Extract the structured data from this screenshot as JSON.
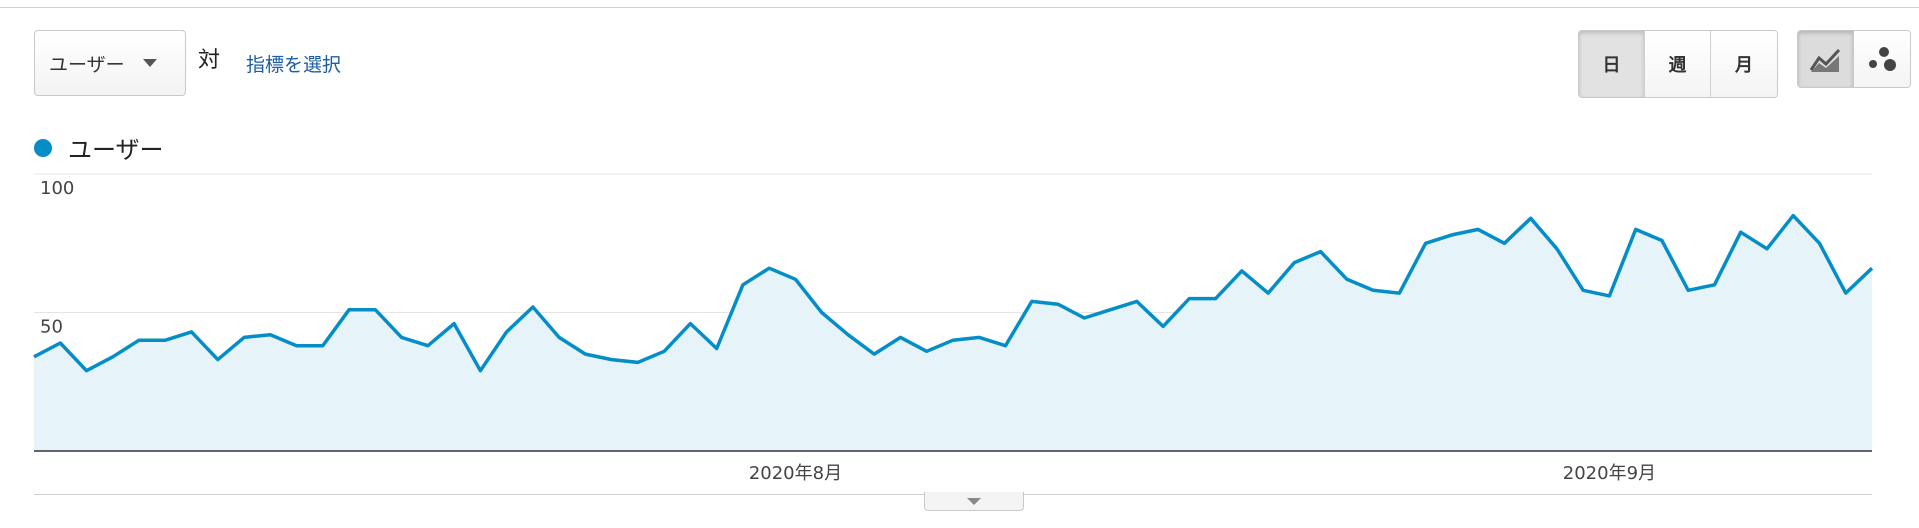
{
  "controls": {
    "metric_dropdown": "ユーザー",
    "vs_label": "対",
    "select_metric_link": "指標を選択",
    "period_buttons": [
      "日",
      "週",
      "月"
    ],
    "active_period": "日",
    "view_buttons": [
      "line-chart-icon",
      "motion-chart-icon"
    ],
    "active_view": "line-chart-icon"
  },
  "colors": {
    "series": "#058dc7",
    "area_fill": "#e6f4fa",
    "link": "#1a5fa3"
  },
  "chart_data": {
    "type": "area",
    "legend": "ユーザー",
    "legend_position": "top-left",
    "y_ticks": [
      "100",
      "50"
    ],
    "y_tick_values": [
      100,
      50
    ],
    "ylim": [
      0,
      100
    ],
    "grid": true,
    "x_tick_labels": [
      "2020年8月",
      "2020年9月"
    ],
    "x_tick_index": [
      29,
      60
    ],
    "series": [
      {
        "name": "ユーザー",
        "values": [
          34,
          39,
          29,
          34,
          40,
          40,
          43,
          33,
          41,
          42,
          38,
          38,
          51,
          51,
          41,
          38,
          46,
          29,
          43,
          52,
          41,
          35,
          33,
          32,
          36,
          46,
          37,
          60,
          66,
          62,
          50,
          42,
          35,
          41,
          36,
          40,
          41,
          38,
          54,
          53,
          48,
          51,
          54,
          45,
          55,
          55,
          65,
          57,
          68,
          72,
          62,
          58,
          57,
          75,
          78,
          80,
          75,
          84,
          73,
          58,
          56,
          80,
          76,
          58,
          60,
          79,
          73,
          85,
          75,
          57,
          66
        ]
      }
    ]
  }
}
